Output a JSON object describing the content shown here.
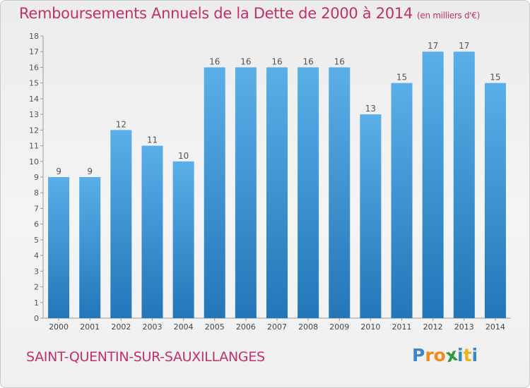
{
  "chart_data": {
    "type": "bar",
    "title": "Remboursements Annuels de la Dette de 2000 à 2014",
    "subtitle": "(en milliers d'€)",
    "categories": [
      "2000",
      "2001",
      "2002",
      "2003",
      "2004",
      "2005",
      "2006",
      "2007",
      "2008",
      "2009",
      "2010",
      "2011",
      "2012",
      "2013",
      "2014"
    ],
    "values": [
      9,
      9,
      12,
      11,
      10,
      16,
      16,
      16,
      16,
      16,
      13,
      15,
      17,
      17,
      15
    ],
    "ylim": [
      0,
      18
    ],
    "yticks": [
      0,
      1,
      2,
      3,
      4,
      5,
      6,
      7,
      8,
      9,
      10,
      11,
      12,
      13,
      14,
      15,
      16,
      17,
      18
    ],
    "grid": false,
    "data_labels": true,
    "bar_color_top": "#5aafe8",
    "bar_color_bottom": "#2376b8",
    "title_color": "#c0306a"
  },
  "footer": {
    "commune": "SAINT-QUENTIN-SUR-SAUXILLANGES",
    "logo_letters": [
      "P",
      "r",
      "o",
      "x",
      "i",
      "t",
      "i"
    ],
    "logo_colors": [
      "#3b86c6",
      "#f08a1c",
      "#f08a1c",
      "#2e9c3a",
      "#3b86c6",
      "#e8b21a",
      "#3b86c6"
    ]
  }
}
